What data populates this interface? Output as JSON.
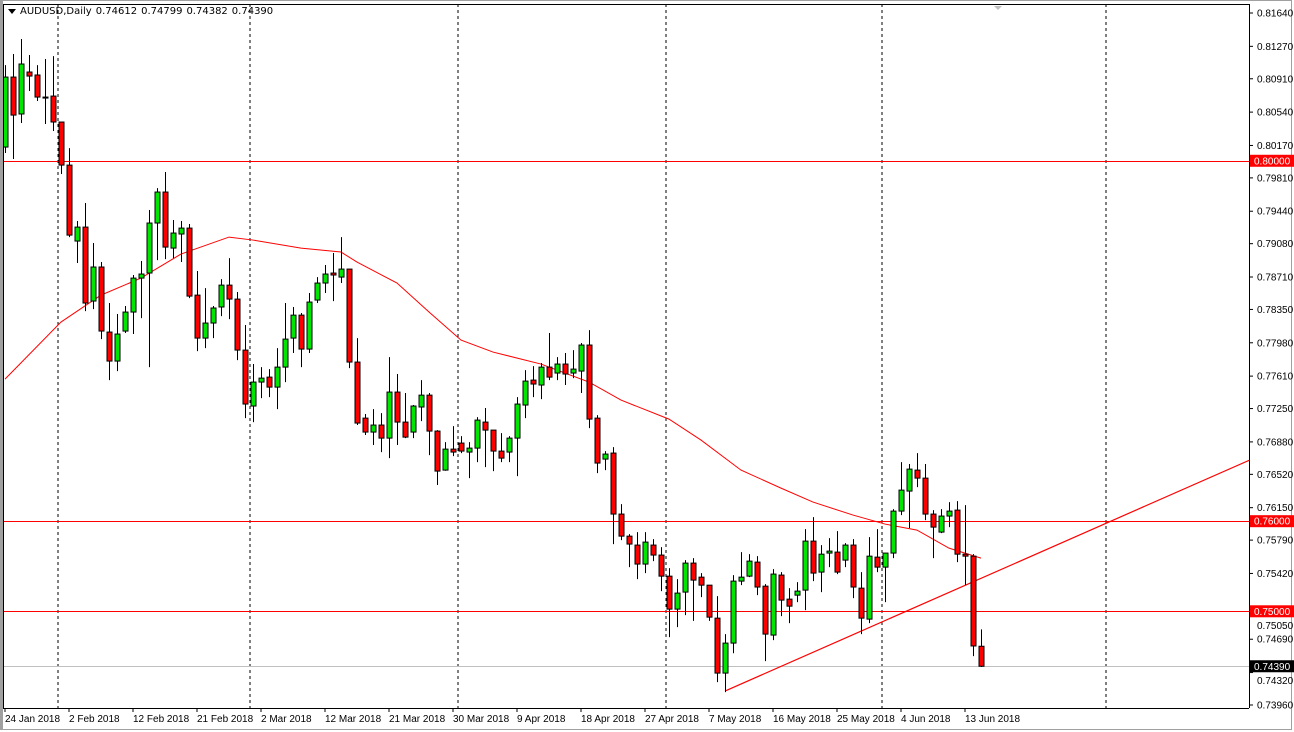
{
  "header": {
    "symbol_timeframe": "AUDUSD,Daily",
    "open": "0.74612",
    "high": "0.74799",
    "low": "0.74382",
    "close": "0.74390"
  },
  "chart_data": {
    "type": "candlestick",
    "symbol": "AUDUSD",
    "timeframe": "Daily",
    "ylim": [
      0.7396,
      0.8164
    ],
    "grid": false,
    "colors": {
      "up": "#00e600",
      "down": "#ff0000",
      "outline": "#000000",
      "moving_average": "#ff0000",
      "level_line": "#ff0000",
      "current_price_line": "#c0c0c0",
      "current_price_label": "#000000"
    },
    "y_tick_labels": [
      "0.81640",
      "0.81270",
      "0.80910",
      "0.80540",
      "0.80170",
      "0.79810",
      "0.79440",
      "0.79080",
      "0.78710",
      "0.78350",
      "0.77980",
      "0.77610",
      "0.77250",
      "0.76880",
      "0.76520",
      "0.76150",
      "0.75790",
      "0.75420",
      "0.75050",
      "0.74690",
      "0.74320",
      "0.73960"
    ],
    "x_tick_labels": [
      "24 Jan 2018",
      "2 Feb 2018",
      "12 Feb 2018",
      "21 Feb 2018",
      "2 Mar 2018",
      "12 Mar 2018",
      "21 Mar 2018",
      "30 Mar 2018",
      "9 Apr 2018",
      "18 Apr 2018",
      "27 Apr 2018",
      "7 May 2018",
      "16 May 2018",
      "25 May 2018",
      "4 Jun 2018",
      "13 Jun 2018"
    ],
    "horizontal_levels": [
      {
        "price": 0.8,
        "label": "0.80000"
      },
      {
        "price": 0.76,
        "label": "0.76000"
      },
      {
        "price": 0.75,
        "label": "0.75000"
      }
    ],
    "current_price": {
      "price": 0.7439,
      "label": "0.74390"
    },
    "candles_ohlc": [
      [
        0.80152,
        0.81062,
        0.80086,
        0.80929
      ],
      [
        0.80929,
        0.81185,
        0.80019,
        0.80507
      ],
      [
        0.80519,
        0.81351,
        0.80419,
        0.81074
      ],
      [
        0.80985,
        0.81174,
        0.80774,
        0.8094
      ],
      [
        0.80952,
        0.81062,
        0.80663,
        0.80707
      ],
      [
        0.80707,
        0.81129,
        0.80408,
        0.80705
      ],
      [
        0.80718,
        0.81162,
        0.8033,
        0.8043
      ],
      [
        0.8043,
        0.8043,
        0.79853,
        0.79952
      ],
      [
        0.79952,
        0.80141,
        0.79153,
        0.79175
      ],
      [
        0.79109,
        0.79331,
        0.78865,
        0.79264
      ],
      [
        0.79264,
        0.79531,
        0.78332,
        0.78421
      ],
      [
        0.78443,
        0.79087,
        0.78354,
        0.78821
      ],
      [
        0.78821,
        0.78876,
        0.78021,
        0.7811
      ],
      [
        0.78099,
        0.78421,
        0.77566,
        0.77777
      ],
      [
        0.77777,
        0.78299,
        0.77666,
        0.78077
      ],
      [
        0.7811,
        0.78388,
        0.78088,
        0.78321
      ],
      [
        0.78321,
        0.78732,
        0.78077,
        0.78698
      ],
      [
        0.78698,
        0.78887,
        0.78254,
        0.78743
      ],
      [
        0.78754,
        0.79453,
        0.7771,
        0.79309
      ],
      [
        0.79309,
        0.79697,
        0.78898,
        0.79653
      ],
      [
        0.79653,
        0.79875,
        0.78909,
        0.79042
      ],
      [
        0.79031,
        0.79342,
        0.7892,
        0.79198
      ],
      [
        0.79187,
        0.79331,
        0.78876,
        0.79253
      ],
      [
        0.79253,
        0.79298,
        0.78476,
        0.78498
      ],
      [
        0.78509,
        0.78776,
        0.77888,
        0.78032
      ],
      [
        0.78032,
        0.78587,
        0.77921,
        0.78199
      ],
      [
        0.78199,
        0.78388,
        0.78032,
        0.78366
      ],
      [
        0.78377,
        0.78687,
        0.78276,
        0.7862
      ],
      [
        0.7862,
        0.7892,
        0.78243,
        0.78465
      ],
      [
        0.78465,
        0.78543,
        0.77788,
        0.77899
      ],
      [
        0.77899,
        0.78177,
        0.77144,
        0.773
      ],
      [
        0.77278,
        0.77744,
        0.771,
        0.77544
      ],
      [
        0.77544,
        0.7771,
        0.77366,
        0.77588
      ],
      [
        0.77599,
        0.77688,
        0.77377,
        0.77488
      ],
      [
        0.77488,
        0.77921,
        0.77244,
        0.7771
      ],
      [
        0.7771,
        0.78421,
        0.77544,
        0.78021
      ],
      [
        0.78032,
        0.78377,
        0.77866,
        0.78287
      ],
      [
        0.78287,
        0.7831,
        0.7771,
        0.7791
      ],
      [
        0.7791,
        0.78532,
        0.77866,
        0.78432
      ],
      [
        0.78454,
        0.78709,
        0.78421,
        0.78643
      ],
      [
        0.78643,
        0.78843,
        0.78532,
        0.78743
      ],
      [
        0.78754,
        0.78976,
        0.78443,
        0.78732
      ],
      [
        0.78709,
        0.79153,
        0.78643,
        0.78798
      ],
      [
        0.78798,
        0.78798,
        0.77699,
        0.77766
      ],
      [
        0.77766,
        0.78032,
        0.77067,
        0.77089
      ],
      [
        0.77144,
        0.77189,
        0.76956,
        0.76989
      ],
      [
        0.76989,
        0.77244,
        0.76845,
        0.77067
      ],
      [
        0.77067,
        0.772,
        0.76767,
        0.76922
      ],
      [
        0.76922,
        0.77821,
        0.767,
        0.77433
      ],
      [
        0.77433,
        0.77633,
        0.76845,
        0.771
      ],
      [
        0.771,
        0.77422,
        0.76922,
        0.76933
      ],
      [
        0.76989,
        0.77289,
        0.76922,
        0.77278
      ],
      [
        0.77267,
        0.77566,
        0.77111,
        0.77399
      ],
      [
        0.77399,
        0.77422,
        0.76733,
        0.77
      ],
      [
        0.77,
        0.77011,
        0.76401,
        0.76556
      ],
      [
        0.76567,
        0.76878,
        0.7656,
        0.768
      ],
      [
        0.768,
        0.77055,
        0.76722,
        0.76767
      ],
      [
        0.76867,
        0.76944,
        0.76756,
        0.76778
      ],
      [
        0.76767,
        0.76878,
        0.76478,
        0.76811
      ],
      [
        0.76811,
        0.77155,
        0.76656,
        0.77122
      ],
      [
        0.771,
        0.77256,
        0.766,
        0.77011
      ],
      [
        0.77011,
        0.77011,
        0.76556,
        0.76778
      ],
      [
        0.76778,
        0.76978,
        0.76656,
        0.767
      ],
      [
        0.76767,
        0.76944,
        0.76656,
        0.76922
      ],
      [
        0.76922,
        0.77377,
        0.765,
        0.773
      ],
      [
        0.77289,
        0.77677,
        0.77144,
        0.77555
      ],
      [
        0.77566,
        0.77721,
        0.77377,
        0.77522
      ],
      [
        0.77511,
        0.77755,
        0.77355,
        0.7771
      ],
      [
        0.7771,
        0.78088,
        0.77566,
        0.77599
      ],
      [
        0.77644,
        0.77821,
        0.77566,
        0.77744
      ],
      [
        0.77744,
        0.77866,
        0.77511,
        0.77633
      ],
      [
        0.77644,
        0.77899,
        0.77588,
        0.77688
      ],
      [
        0.77666,
        0.77977,
        0.77422,
        0.77955
      ],
      [
        0.77955,
        0.78121,
        0.77033,
        0.77133
      ],
      [
        0.77144,
        0.77177,
        0.76534,
        0.76645
      ],
      [
        0.76689,
        0.76778,
        0.76567,
        0.76745
      ],
      [
        0.76756,
        0.76822,
        0.75746,
        0.76079
      ],
      [
        0.76079,
        0.7619,
        0.7579,
        0.75834
      ],
      [
        0.75834,
        0.75857,
        0.7549,
        0.75746
      ],
      [
        0.75735,
        0.75879,
        0.75357,
        0.75524
      ],
      [
        0.75524,
        0.75879,
        0.75424,
        0.75768
      ],
      [
        0.75735,
        0.75801,
        0.75557,
        0.75624
      ],
      [
        0.75624,
        0.75712,
        0.75224,
        0.7539
      ],
      [
        0.7539,
        0.75479,
        0.74713,
        0.75024
      ],
      [
        0.75024,
        0.75357,
        0.74824,
        0.75202
      ],
      [
        0.75213,
        0.75568,
        0.74958,
        0.75535
      ],
      [
        0.75535,
        0.7559,
        0.74893,
        0.75346
      ],
      [
        0.75379,
        0.75424,
        0.75157,
        0.7529
      ],
      [
        0.7529,
        0.7529,
        0.74893,
        0.74935
      ],
      [
        0.74924,
        0.75168,
        0.74214,
        0.74314
      ],
      [
        0.74314,
        0.74747,
        0.74103,
        0.74647
      ],
      [
        0.74647,
        0.75402,
        0.74535,
        0.75335
      ],
      [
        0.75335,
        0.75656,
        0.7529,
        0.75379
      ],
      [
        0.7539,
        0.75634,
        0.75379,
        0.75557
      ],
      [
        0.75546,
        0.75612,
        0.75179,
        0.75269
      ],
      [
        0.75279,
        0.75302,
        0.74447,
        0.74747
      ],
      [
        0.74736,
        0.75468,
        0.7468,
        0.75413
      ],
      [
        0.75402,
        0.75435,
        0.74946,
        0.75124
      ],
      [
        0.75135,
        0.75257,
        0.74869,
        0.75057
      ],
      [
        0.75179,
        0.75324,
        0.75102,
        0.75224
      ],
      [
        0.75235,
        0.75912,
        0.75013,
        0.75779
      ],
      [
        0.75779,
        0.76045,
        0.75335,
        0.75424
      ],
      [
        0.75435,
        0.75735,
        0.75213,
        0.75634
      ],
      [
        0.75646,
        0.75812,
        0.7549,
        0.75668
      ],
      [
        0.75657,
        0.7589,
        0.75413,
        0.75435
      ],
      [
        0.75568,
        0.75757,
        0.7549,
        0.75735
      ],
      [
        0.75735,
        0.75801,
        0.75146,
        0.75269
      ],
      [
        0.75257,
        0.75435,
        0.74747,
        0.74924
      ],
      [
        0.74913,
        0.75823,
        0.74869,
        0.75612
      ],
      [
        0.75601,
        0.75912,
        0.75435,
        0.7549
      ],
      [
        0.7549,
        0.75646,
        0.75102,
        0.75646
      ],
      [
        0.75646,
        0.76134,
        0.7559,
        0.76112
      ],
      [
        0.76112,
        0.76656,
        0.76067,
        0.76345
      ],
      [
        0.76334,
        0.76634,
        0.75923,
        0.76578
      ],
      [
        0.76567,
        0.76756,
        0.76378,
        0.76478
      ],
      [
        0.76478,
        0.76634,
        0.76012,
        0.76079
      ],
      [
        0.76079,
        0.76123,
        0.7559,
        0.75934
      ],
      [
        0.75879,
        0.76134,
        0.75868,
        0.76057
      ],
      [
        0.76057,
        0.76212,
        0.75934,
        0.76112
      ],
      [
        0.76123,
        0.76223,
        0.75546,
        0.75634
      ],
      [
        0.75634,
        0.76178,
        0.75291,
        0.75612
      ],
      [
        0.75612,
        0.75634,
        0.74502,
        0.74615
      ],
      [
        0.74612,
        0.74799,
        0.74382,
        0.7439
      ]
    ],
    "moving_average": [
      [
        0,
        0.77577
      ],
      [
        7,
        0.7821
      ],
      [
        12,
        0.78509
      ],
      [
        17,
        0.78698
      ],
      [
        22,
        0.78965
      ],
      [
        28,
        0.79153
      ],
      [
        31,
        0.7912
      ],
      [
        37,
        0.79031
      ],
      [
        42,
        0.78987
      ],
      [
        44,
        0.78876
      ],
      [
        49,
        0.78643
      ],
      [
        53,
        0.78321
      ],
      [
        57,
        0.7801
      ],
      [
        61,
        0.77877
      ],
      [
        67,
        0.77744
      ],
      [
        73,
        0.77544
      ],
      [
        77,
        0.77344
      ],
      [
        83,
        0.77133
      ],
      [
        87,
        0.769
      ],
      [
        92,
        0.76567
      ],
      [
        97,
        0.76367
      ],
      [
        101,
        0.76212
      ],
      [
        106,
        0.76068
      ],
      [
        110,
        0.75968
      ],
      [
        114,
        0.75901
      ],
      [
        118,
        0.75701
      ],
      [
        122,
        0.7559
      ]
    ],
    "trendline": {
      "from": [
        90,
        0.74115
      ],
      "to": [
        155.6,
        0.76679
      ]
    }
  }
}
